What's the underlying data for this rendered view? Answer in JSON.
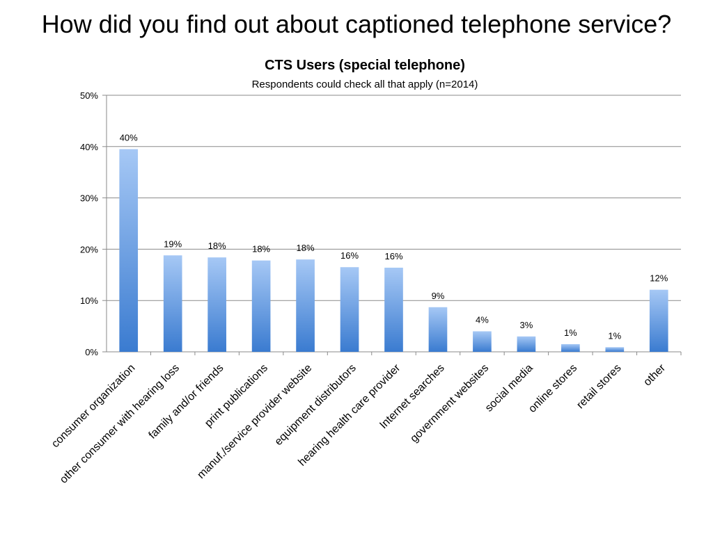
{
  "slide": {
    "title": "How did you find out about captioned telephone service?"
  },
  "colors": {
    "bar_top": "#a6c8f5",
    "bar_bottom": "#3a7bd0",
    "gridline": "#8a8a8a",
    "axis": "#8a8a8a",
    "text": "#000000"
  },
  "chart_data": {
    "type": "bar",
    "title": "CTS Users (special telephone)",
    "subtitle": "Respondents could check all that apply  (n=2014)",
    "xlabel": "",
    "ylabel": "",
    "ylim": [
      0,
      50
    ],
    "yticks": [
      0,
      10,
      20,
      30,
      40,
      50
    ],
    "ytick_labels": [
      "0%",
      "10%",
      "20%",
      "30%",
      "40%",
      "50%"
    ],
    "grid": true,
    "legend": "none",
    "categories": [
      "consumer organization",
      "other consumer with hearing loss",
      "family and/or friends",
      "print publications",
      "manuf./service provider website",
      "equipment distributors",
      "hearing health care provider",
      "Internet searches",
      "government websites",
      "social media",
      "online stores",
      "retail stores",
      "other"
    ],
    "values": [
      39.5,
      18.8,
      18.4,
      17.8,
      18.0,
      16.5,
      16.4,
      8.7,
      4.0,
      3.0,
      1.5,
      0.9,
      12.1
    ],
    "data_labels": [
      "40%",
      "19%",
      "18%",
      "18%",
      "18%",
      "16%",
      "16%",
      "9%",
      "4%",
      "3%",
      "1%",
      "1%",
      "12%"
    ]
  }
}
